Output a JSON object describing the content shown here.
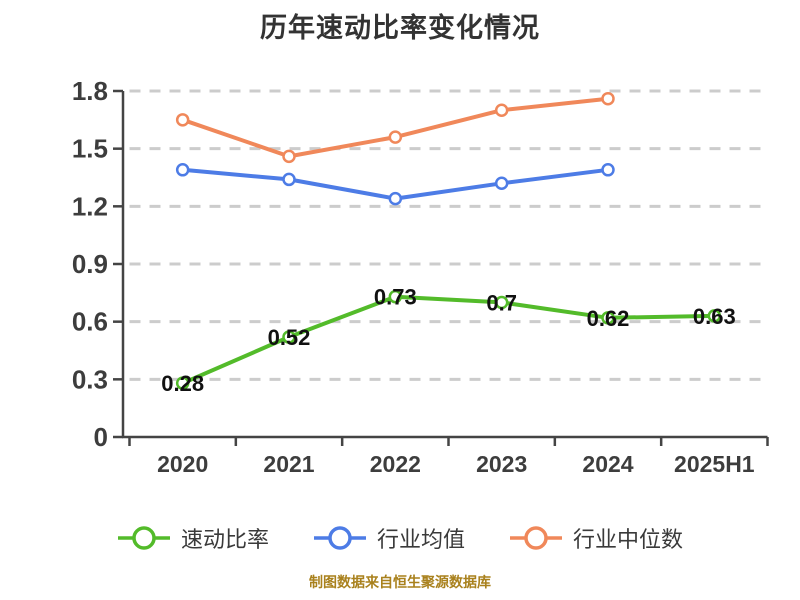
{
  "chart_data": {
    "type": "line",
    "title": "历年速动比率变化情况",
    "categories": [
      "2020",
      "2021",
      "2022",
      "2023",
      "2024",
      "2025H1"
    ],
    "series": [
      {
        "name": "速动比率",
        "color": "#53bb2a",
        "values": [
          0.28,
          0.52,
          0.73,
          0.7,
          0.62,
          0.63
        ],
        "data_labels": [
          "0.28",
          "0.52",
          "0.73",
          "0.7",
          "0.62",
          "0.63"
        ]
      },
      {
        "name": "行业均值",
        "color": "#4d7ce6",
        "values": [
          1.39,
          1.34,
          1.24,
          1.32,
          1.39,
          null
        ],
        "data_labels": null
      },
      {
        "name": "行业中位数",
        "color": "#f0885a",
        "values": [
          1.65,
          1.46,
          1.56,
          1.7,
          1.76,
          null
        ],
        "data_labels": null
      }
    ],
    "ylim": [
      0,
      1.8
    ],
    "yticks": [
      0,
      0.3,
      0.6,
      0.9,
      1.2,
      1.5,
      1.8
    ],
    "ytick_labels": [
      "0",
      "0.3",
      "0.6",
      "0.9",
      "1.2",
      "1.5",
      "1.8"
    ],
    "grid": "dashed-horizontal",
    "legend_position": "bottom",
    "marker_style": "hollow-circle"
  },
  "footer": {
    "text": "制图数据来自恒生聚源数据库",
    "color": "#a9811d"
  },
  "colors": {
    "background": "#ffffff",
    "grid": "#cccccc",
    "axis": "#444444",
    "tick_label": "#3d3d3d",
    "title": "#333333",
    "data_label": "#111111"
  }
}
